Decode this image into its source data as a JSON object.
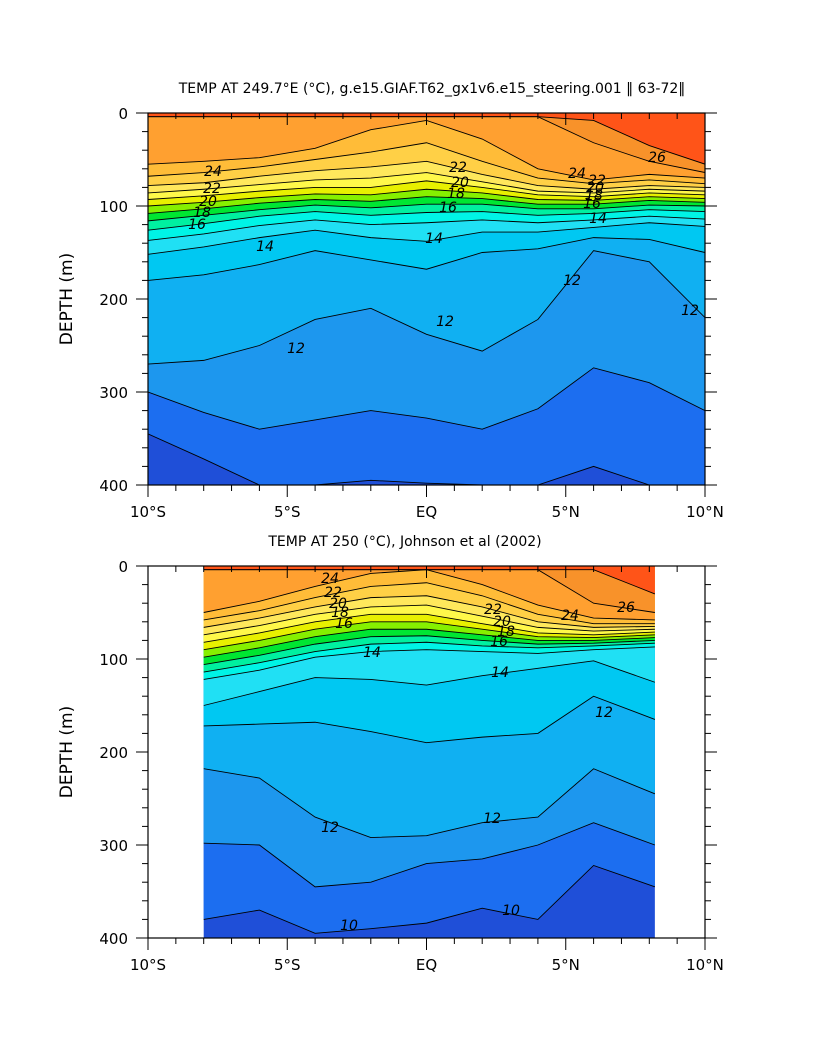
{
  "chart_data": [
    {
      "type": "heatmap",
      "subtype": "filled-contour",
      "title": "TEMP AT 249.7°E (°C), g.e15.GIAF.T62_gx1v6.e15_steering.001 ‖ 63-72‖",
      "ylabel": "DEPTH (m)",
      "xlabel": "",
      "x_tick_labels": [
        "10°S",
        "5°S",
        "EQ",
        "5°N",
        "10°N"
      ],
      "x_ticks": [
        -10,
        -5,
        0,
        5,
        10
      ],
      "y_tick_labels": [
        "0",
        "100",
        "200",
        "300",
        "400"
      ],
      "y_ticks": [
        0,
        100,
        200,
        300,
        400
      ],
      "xlim": [
        -10,
        10
      ],
      "ylim": [
        400,
        0
      ],
      "data_extent": [
        -10,
        10
      ],
      "contour_labels": [
        "24",
        "22",
        "20",
        "18",
        "16",
        "14",
        "12",
        "22",
        "20",
        "18",
        "16",
        "14",
        "12",
        "26",
        "24",
        "22",
        "20",
        "18",
        "16",
        "14",
        "12",
        "12"
      ],
      "isotherm_depths_m": {
        "lat": [
          -10,
          -8,
          -6,
          -4,
          -2,
          0,
          2,
          4,
          6,
          8,
          10
        ],
        "26": [
          4,
          4,
          4,
          4,
          4,
          4,
          4,
          4,
          8,
          35,
          55
        ],
        "25": [
          4,
          4,
          4,
          4,
          4,
          4,
          4,
          4,
          32,
          52,
          64
        ],
        "24": [
          55,
          52,
          48,
          38,
          18,
          8,
          28,
          60,
          72,
          66,
          70
        ],
        "23": [
          68,
          64,
          58,
          50,
          42,
          32,
          52,
          70,
          76,
          72,
          76
        ],
        "22": [
          78,
          75,
          68,
          62,
          58,
          52,
          66,
          78,
          82,
          78,
          80
        ],
        "21": [
          86,
          82,
          77,
          72,
          70,
          64,
          74,
          84,
          86,
          82,
          84
        ],
        "20": [
          93,
          89,
          84,
          80,
          80,
          73,
          80,
          88,
          90,
          86,
          88
        ],
        "19": [
          100,
          96,
          91,
          87,
          88,
          82,
          86,
          93,
          94,
          90,
          92
        ],
        "18": [
          108,
          103,
          97,
          93,
          95,
          90,
          92,
          98,
          98,
          94,
          96
        ],
        "17": [
          116,
          110,
          104,
          99,
          102,
          98,
          98,
          103,
          103,
          99,
          100
        ],
        "16": [
          126,
          119,
          111,
          106,
          110,
          107,
          106,
          110,
          108,
          104,
          106
        ],
        "15": [
          137,
          130,
          121,
          115,
          120,
          118,
          115,
          118,
          115,
          111,
          114
        ],
        "14": [
          152,
          144,
          134,
          126,
          134,
          138,
          128,
          128,
          123,
          118,
          122
        ],
        "13": [
          180,
          174,
          163,
          148,
          158,
          168,
          150,
          146,
          134,
          136,
          150
        ],
        "12": [
          270,
          266,
          250,
          222,
          210,
          238,
          256,
          222,
          148,
          160,
          220
        ],
        "11": [
          300,
          322,
          340,
          330,
          320,
          328,
          340,
          318,
          274,
          290,
          320
        ],
        "10": [
          345,
          372,
          400,
          400,
          395,
          398,
          400,
          400,
          380,
          400,
          400
        ]
      }
    },
    {
      "type": "heatmap",
      "subtype": "filled-contour",
      "title": "TEMP AT 250 (°C), Johnson et al (2002)",
      "ylabel": "DEPTH (m)",
      "xlabel": "",
      "x_tick_labels": [
        "10°S",
        "5°S",
        "EQ",
        "5°N",
        "10°N"
      ],
      "x_ticks": [
        -10,
        -5,
        0,
        5,
        10
      ],
      "y_tick_labels": [
        "0",
        "100",
        "200",
        "300",
        "400"
      ],
      "y_ticks": [
        0,
        100,
        200,
        300,
        400
      ],
      "xlim": [
        -10,
        10
      ],
      "ylim": [
        400,
        0
      ],
      "data_extent": [
        -8,
        8.2
      ],
      "contour_labels": [
        "24",
        "22",
        "20",
        "18",
        "16",
        "14",
        "22",
        "20",
        "18",
        "16",
        "14",
        "26",
        "24",
        "12",
        "12",
        "12",
        "10",
        "10"
      ],
      "isotherm_depths_m": {
        "lat": [
          -8,
          -6,
          -4,
          -2,
          0,
          2,
          4,
          6,
          8.2
        ],
        "26": [
          4,
          4,
          4,
          4,
          4,
          4,
          4,
          4,
          30
        ],
        "25": [
          4,
          4,
          4,
          4,
          4,
          4,
          4,
          40,
          50
        ],
        "24": [
          50,
          38,
          22,
          8,
          4,
          20,
          42,
          56,
          58
        ],
        "23": [
          58,
          48,
          34,
          22,
          18,
          32,
          52,
          62,
          62
        ],
        "22": [
          66,
          56,
          44,
          34,
          32,
          44,
          60,
          66,
          65
        ],
        "21": [
          74,
          64,
          52,
          44,
          42,
          54,
          66,
          70,
          68
        ],
        "20": [
          82,
          72,
          60,
          52,
          52,
          62,
          72,
          74,
          71
        ],
        "19": [
          90,
          80,
          68,
          60,
          60,
          68,
          76,
          77,
          74
        ],
        "18": [
          98,
          88,
          76,
          68,
          68,
          74,
          80,
          80,
          77
        ],
        "17": [
          106,
          96,
          84,
          76,
          75,
          80,
          84,
          83,
          80
        ],
        "16": [
          114,
          104,
          92,
          84,
          82,
          86,
          88,
          86,
          83
        ],
        "15": [
          122,
          112,
          98,
          92,
          90,
          92,
          94,
          90,
          87
        ],
        "14": [
          150,
          135,
          120,
          122,
          128,
          118,
          110,
          102,
          125
        ],
        "13": [
          172,
          170,
          168,
          178,
          190,
          184,
          180,
          140,
          165
        ],
        "12": [
          218,
          228,
          270,
          292,
          290,
          276,
          270,
          218,
          245
        ],
        "11": [
          298,
          300,
          345,
          340,
          320,
          315,
          300,
          276,
          300
        ],
        "10": [
          380,
          370,
          395,
          390,
          384,
          368,
          380,
          322,
          345
        ]
      }
    }
  ]
}
